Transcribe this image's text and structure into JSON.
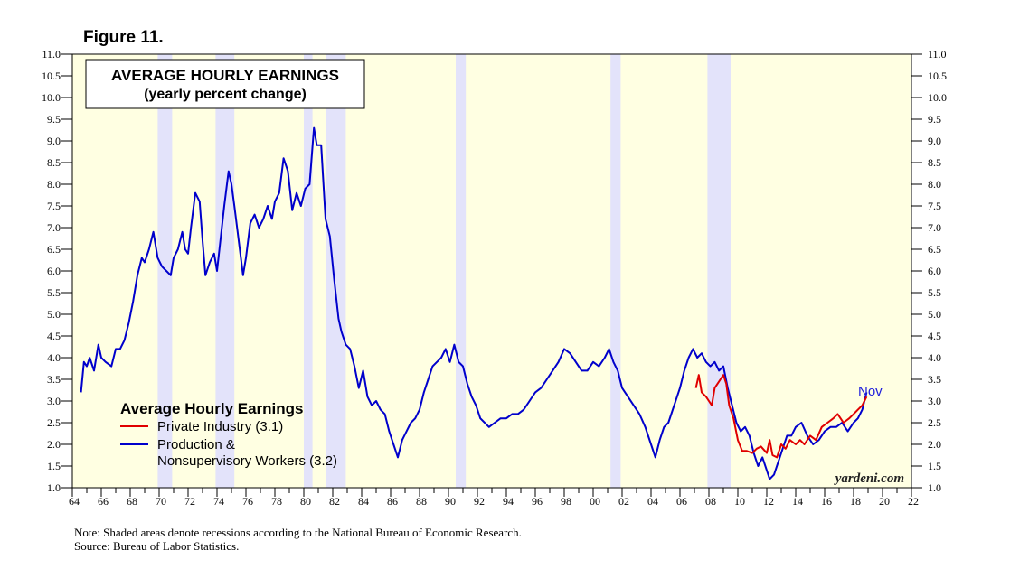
{
  "figure_label": "Figure 11.",
  "note": "Note: Shaded areas denote recessions according to the National Bureau of Economic Research.",
  "source": "Source: Bureau of Labor Statistics.",
  "watermark": "yardeni.com",
  "colors": {
    "plot_bg": "#FFFFE2",
    "recession": "#E3E3FA",
    "production": "#0000CC",
    "private": "#E00000",
    "nov_label": "#1E1EDC"
  },
  "chart_data": {
    "type": "line",
    "title": "AVERAGE HOURLY EARNINGS",
    "subtitle": "(yearly percent change)",
    "legend_title": "Average Hourly Earnings",
    "end_label": "Nov",
    "xlim": [
      1964,
      2022
    ],
    "ylim": [
      1.0,
      11.0
    ],
    "x_tick_labels": [
      "64",
      "66",
      "68",
      "70",
      "72",
      "74",
      "76",
      "78",
      "80",
      "82",
      "84",
      "86",
      "88",
      "90",
      "92",
      "94",
      "96",
      "98",
      "00",
      "02",
      "04",
      "06",
      "08",
      "10",
      "12",
      "14",
      "16",
      "18",
      "20",
      "22"
    ],
    "y_tick_labels": [
      "1.0",
      "1.5",
      "2.0",
      "2.5",
      "3.0",
      "3.5",
      "4.0",
      "4.5",
      "5.0",
      "5.5",
      "6.0",
      "6.5",
      "7.0",
      "7.5",
      "8.0",
      "8.5",
      "9.0",
      "9.5",
      "10.0",
      "10.5",
      "11.0"
    ],
    "recessions": [
      [
        1969.9,
        1970.9
      ],
      [
        1973.9,
        1975.2
      ],
      [
        1980.0,
        1980.6
      ],
      [
        1981.5,
        1982.9
      ],
      [
        1990.5,
        1991.2
      ],
      [
        2001.2,
        2001.9
      ],
      [
        2007.9,
        2009.5
      ]
    ],
    "series": [
      {
        "name": "Private Industry (3.1)",
        "color_key": "private",
        "points": [
          [
            2007.1,
            3.3
          ],
          [
            2007.3,
            3.6
          ],
          [
            2007.5,
            3.2
          ],
          [
            2007.8,
            3.1
          ],
          [
            2008.0,
            3.0
          ],
          [
            2008.2,
            2.9
          ],
          [
            2008.4,
            3.3
          ],
          [
            2008.6,
            3.4
          ],
          [
            2008.8,
            3.5
          ],
          [
            2009.0,
            3.6
          ],
          [
            2009.2,
            3.4
          ],
          [
            2009.4,
            2.9
          ],
          [
            2009.7,
            2.6
          ],
          [
            2010.0,
            2.1
          ],
          [
            2010.3,
            1.85
          ],
          [
            2010.6,
            1.85
          ],
          [
            2011.0,
            1.8
          ],
          [
            2011.3,
            1.9
          ],
          [
            2011.6,
            1.95
          ],
          [
            2012.0,
            1.8
          ],
          [
            2012.2,
            2.1
          ],
          [
            2012.4,
            1.75
          ],
          [
            2012.7,
            1.7
          ],
          [
            2013.0,
            2.0
          ],
          [
            2013.3,
            1.9
          ],
          [
            2013.6,
            2.1
          ],
          [
            2014.0,
            2.0
          ],
          [
            2014.3,
            2.1
          ],
          [
            2014.6,
            2.0
          ],
          [
            2015.0,
            2.2
          ],
          [
            2015.4,
            2.1
          ],
          [
            2015.8,
            2.4
          ],
          [
            2016.2,
            2.5
          ],
          [
            2016.6,
            2.6
          ],
          [
            2016.9,
            2.7
          ],
          [
            2017.3,
            2.5
          ],
          [
            2017.7,
            2.6
          ],
          [
            2018.0,
            2.7
          ],
          [
            2018.3,
            2.8
          ],
          [
            2018.6,
            2.9
          ],
          [
            2018.9,
            3.1
          ]
        ]
      },
      {
        "name": "Production & Nonsupervisory Workers (3.2)",
        "color_key": "production",
        "points": [
          [
            1964.6,
            3.2
          ],
          [
            1964.8,
            3.9
          ],
          [
            1965.0,
            3.8
          ],
          [
            1965.2,
            4.0
          ],
          [
            1965.5,
            3.7
          ],
          [
            1965.8,
            4.3
          ],
          [
            1966.0,
            4.0
          ],
          [
            1966.3,
            3.9
          ],
          [
            1966.7,
            3.8
          ],
          [
            1967.0,
            4.2
          ],
          [
            1967.3,
            4.2
          ],
          [
            1967.6,
            4.4
          ],
          [
            1967.9,
            4.8
          ],
          [
            1968.2,
            5.3
          ],
          [
            1968.5,
            5.9
          ],
          [
            1968.8,
            6.3
          ],
          [
            1969.0,
            6.2
          ],
          [
            1969.3,
            6.5
          ],
          [
            1969.6,
            6.9
          ],
          [
            1969.9,
            6.3
          ],
          [
            1970.2,
            6.1
          ],
          [
            1970.5,
            6.0
          ],
          [
            1970.8,
            5.9
          ],
          [
            1971.0,
            6.3
          ],
          [
            1971.3,
            6.5
          ],
          [
            1971.6,
            6.9
          ],
          [
            1971.8,
            6.5
          ],
          [
            1972.0,
            6.4
          ],
          [
            1972.2,
            7.0
          ],
          [
            1972.5,
            7.8
          ],
          [
            1972.8,
            7.6
          ],
          [
            1973.0,
            6.7
          ],
          [
            1973.2,
            5.9
          ],
          [
            1973.5,
            6.2
          ],
          [
            1973.8,
            6.4
          ],
          [
            1974.0,
            6.0
          ],
          [
            1974.2,
            6.6
          ],
          [
            1974.5,
            7.5
          ],
          [
            1974.8,
            8.3
          ],
          [
            1975.0,
            8.0
          ],
          [
            1975.2,
            7.5
          ],
          [
            1975.5,
            6.7
          ],
          [
            1975.8,
            5.9
          ],
          [
            1976.0,
            6.3
          ],
          [
            1976.3,
            7.1
          ],
          [
            1976.6,
            7.3
          ],
          [
            1976.9,
            7.0
          ],
          [
            1977.2,
            7.2
          ],
          [
            1977.5,
            7.5
          ],
          [
            1977.8,
            7.2
          ],
          [
            1978.0,
            7.6
          ],
          [
            1978.3,
            7.8
          ],
          [
            1978.6,
            8.6
          ],
          [
            1978.9,
            8.3
          ],
          [
            1979.2,
            7.4
          ],
          [
            1979.5,
            7.8
          ],
          [
            1979.8,
            7.5
          ],
          [
            1980.1,
            7.9
          ],
          [
            1980.4,
            8.0
          ],
          [
            1980.7,
            9.3
          ],
          [
            1980.9,
            8.9
          ],
          [
            1981.2,
            8.9
          ],
          [
            1981.5,
            7.2
          ],
          [
            1981.8,
            6.8
          ],
          [
            1982.1,
            5.8
          ],
          [
            1982.4,
            4.9
          ],
          [
            1982.6,
            4.6
          ],
          [
            1982.9,
            4.3
          ],
          [
            1983.2,
            4.2
          ],
          [
            1983.5,
            3.8
          ],
          [
            1983.8,
            3.3
          ],
          [
            1984.1,
            3.7
          ],
          [
            1984.4,
            3.1
          ],
          [
            1984.7,
            2.9
          ],
          [
            1985.0,
            3.0
          ],
          [
            1985.3,
            2.8
          ],
          [
            1985.6,
            2.7
          ],
          [
            1985.9,
            2.3
          ],
          [
            1986.2,
            2.0
          ],
          [
            1986.5,
            1.7
          ],
          [
            1986.8,
            2.1
          ],
          [
            1987.1,
            2.3
          ],
          [
            1987.4,
            2.5
          ],
          [
            1987.7,
            2.6
          ],
          [
            1988.0,
            2.8
          ],
          [
            1988.3,
            3.2
          ],
          [
            1988.6,
            3.5
          ],
          [
            1988.9,
            3.8
          ],
          [
            1989.2,
            3.9
          ],
          [
            1989.5,
            4.0
          ],
          [
            1989.8,
            4.2
          ],
          [
            1990.1,
            3.9
          ],
          [
            1990.4,
            4.3
          ],
          [
            1990.7,
            3.9
          ],
          [
            1991.0,
            3.8
          ],
          [
            1991.3,
            3.4
          ],
          [
            1991.6,
            3.1
          ],
          [
            1991.9,
            2.9
          ],
          [
            1992.2,
            2.6
          ],
          [
            1992.5,
            2.5
          ],
          [
            1992.8,
            2.4
          ],
          [
            1993.2,
            2.5
          ],
          [
            1993.6,
            2.6
          ],
          [
            1994.0,
            2.6
          ],
          [
            1994.4,
            2.7
          ],
          [
            1994.8,
            2.7
          ],
          [
            1995.2,
            2.8
          ],
          [
            1995.6,
            3.0
          ],
          [
            1996.0,
            3.2
          ],
          [
            1996.4,
            3.3
          ],
          [
            1996.8,
            3.5
          ],
          [
            1997.2,
            3.7
          ],
          [
            1997.6,
            3.9
          ],
          [
            1998.0,
            4.2
          ],
          [
            1998.4,
            4.1
          ],
          [
            1998.8,
            3.9
          ],
          [
            1999.2,
            3.7
          ],
          [
            1999.6,
            3.7
          ],
          [
            2000.0,
            3.9
          ],
          [
            2000.4,
            3.8
          ],
          [
            2000.8,
            4.0
          ],
          [
            2001.1,
            4.2
          ],
          [
            2001.4,
            3.9
          ],
          [
            2001.7,
            3.7
          ],
          [
            2002.0,
            3.3
          ],
          [
            2002.4,
            3.1
          ],
          [
            2002.8,
            2.9
          ],
          [
            2003.2,
            2.7
          ],
          [
            2003.6,
            2.4
          ],
          [
            2004.0,
            2.0
          ],
          [
            2004.3,
            1.7
          ],
          [
            2004.6,
            2.1
          ],
          [
            2004.9,
            2.4
          ],
          [
            2005.2,
            2.5
          ],
          [
            2005.6,
            2.9
          ],
          [
            2006.0,
            3.3
          ],
          [
            2006.3,
            3.7
          ],
          [
            2006.6,
            4.0
          ],
          [
            2006.9,
            4.2
          ],
          [
            2007.2,
            4.0
          ],
          [
            2007.5,
            4.1
          ],
          [
            2007.8,
            3.9
          ],
          [
            2008.1,
            3.8
          ],
          [
            2008.4,
            3.9
          ],
          [
            2008.7,
            3.7
          ],
          [
            2009.0,
            3.8
          ],
          [
            2009.3,
            3.3
          ],
          [
            2009.6,
            2.9
          ],
          [
            2009.9,
            2.5
          ],
          [
            2010.2,
            2.3
          ],
          [
            2010.5,
            2.4
          ],
          [
            2010.8,
            2.2
          ],
          [
            2011.1,
            1.8
          ],
          [
            2011.4,
            1.5
          ],
          [
            2011.7,
            1.7
          ],
          [
            2012.0,
            1.4
          ],
          [
            2012.2,
            1.2
          ],
          [
            2012.5,
            1.3
          ],
          [
            2012.8,
            1.6
          ],
          [
            2013.1,
            1.9
          ],
          [
            2013.4,
            2.2
          ],
          [
            2013.7,
            2.2
          ],
          [
            2014.0,
            2.4
          ],
          [
            2014.4,
            2.5
          ],
          [
            2014.8,
            2.2
          ],
          [
            2015.2,
            2.0
          ],
          [
            2015.6,
            2.1
          ],
          [
            2016.0,
            2.3
          ],
          [
            2016.4,
            2.4
          ],
          [
            2016.8,
            2.4
          ],
          [
            2017.2,
            2.5
          ],
          [
            2017.6,
            2.3
          ],
          [
            2018.0,
            2.5
          ],
          [
            2018.3,
            2.6
          ],
          [
            2018.6,
            2.8
          ],
          [
            2018.9,
            3.2
          ]
        ]
      }
    ]
  }
}
